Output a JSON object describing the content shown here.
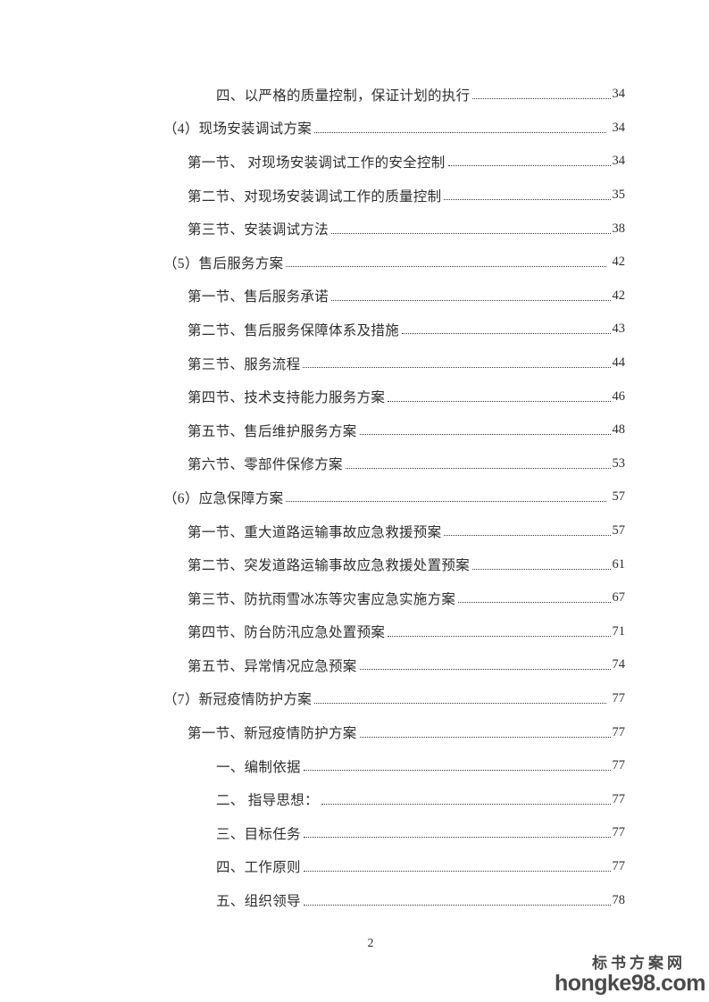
{
  "page": {
    "number": "2"
  },
  "toc": {
    "entries": [
      {
        "level": 3,
        "title": "四、以严格的质量控制，保证计划的执行",
        "page": "34"
      },
      {
        "level": 1,
        "title": "（4）现场安装调试方案",
        "page": "34"
      },
      {
        "level": 2,
        "title": "第一节、 对现场安装调试工作的安全控制",
        "page": "34"
      },
      {
        "level": 2,
        "title": "第二节、对现场安装调试工作的质量控制",
        "page": "35"
      },
      {
        "level": 2,
        "title": "第三节、安装调试方法",
        "page": "38"
      },
      {
        "level": 1,
        "title": "（5）售后服务方案",
        "page": "42"
      },
      {
        "level": 2,
        "title": "第一节、售后服务承诺",
        "page": "42"
      },
      {
        "level": 2,
        "title": "第二节、售后服务保障体系及措施",
        "page": "43"
      },
      {
        "level": 2,
        "title": "第三节、服务流程",
        "page": "44"
      },
      {
        "level": 2,
        "title": "第四节、技术支持能力服务方案",
        "page": "46"
      },
      {
        "level": 2,
        "title": "第五节、售后维护服务方案",
        "page": "48"
      },
      {
        "level": 2,
        "title": "第六节、零部件保修方案",
        "page": "53"
      },
      {
        "level": 1,
        "title": "（6）应急保障方案",
        "page": "57"
      },
      {
        "level": 2,
        "title": "第一节、重大道路运输事故应急救援预案",
        "page": "57"
      },
      {
        "level": 2,
        "title": "第二节、突发道路运输事故应急救援处置预案",
        "page": "61"
      },
      {
        "level": 2,
        "title": "第三节、防抗雨雪冰冻等灾害应急实施方案",
        "page": "67"
      },
      {
        "level": 2,
        "title": "第四节、防台防汛应急处置预案",
        "page": "71"
      },
      {
        "level": 2,
        "title": "第五节、异常情况应急预案",
        "page": "74"
      },
      {
        "level": 1,
        "title": "（7）新冠疫情防护方案",
        "page": "77"
      },
      {
        "level": 2,
        "title": "第一节、新冠疫情防护方案",
        "page": "77"
      },
      {
        "level": 3,
        "title": "一、编制依据",
        "page": "77"
      },
      {
        "level": 3,
        "title": "二、 指导思想：",
        "page": "77"
      },
      {
        "level": 3,
        "title": "三、目标任务",
        "page": "77"
      },
      {
        "level": 3,
        "title": "四、工作原则",
        "page": "77"
      },
      {
        "level": 3,
        "title": "五、组织领导",
        "page": "78"
      }
    ]
  },
  "watermark": {
    "site_name": "标书方案网",
    "site_url": "hongke98.com",
    "color": "#4a4a4a"
  }
}
